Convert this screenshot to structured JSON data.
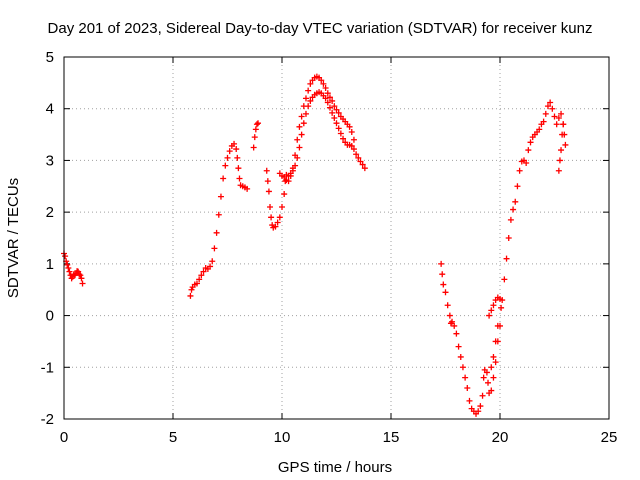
{
  "chart_data": {
    "type": "scatter",
    "title": "Day 201 of 2023, Sidereal Day-to-day VTEC variation (SDTVAR) for receiver kunz",
    "xlabel": "GPS time / hours",
    "ylabel": "SDTVAR / TECUs",
    "xlim": [
      0,
      25
    ],
    "ylim": [
      -2,
      5
    ],
    "xticks": [
      0,
      5,
      10,
      15,
      20,
      25
    ],
    "yticks": [
      -2,
      -1,
      0,
      1,
      2,
      3,
      4,
      5
    ],
    "grid": true,
    "legend": "none",
    "marker": "+",
    "color": "#ff0000",
    "series": [
      {
        "points": [
          [
            0.0,
            1.2
          ],
          [
            0.05,
            1.15
          ],
          [
            0.1,
            1.05
          ],
          [
            0.15,
            0.98
          ],
          [
            0.2,
            0.92
          ],
          [
            0.25,
            0.85
          ],
          [
            0.3,
            0.78
          ],
          [
            0.35,
            0.72
          ],
          [
            0.4,
            0.75
          ],
          [
            0.45,
            0.8
          ],
          [
            0.5,
            0.78
          ],
          [
            0.55,
            0.82
          ],
          [
            0.6,
            0.86
          ],
          [
            0.65,
            0.85
          ],
          [
            0.7,
            0.8
          ],
          [
            0.75,
            0.78
          ],
          [
            0.8,
            0.72
          ],
          [
            0.85,
            0.62
          ]
        ]
      },
      {
        "points": [
          [
            5.8,
            0.38
          ],
          [
            5.85,
            0.5
          ],
          [
            5.9,
            0.55
          ],
          [
            6.0,
            0.6
          ],
          [
            6.1,
            0.62
          ],
          [
            6.2,
            0.7
          ],
          [
            6.3,
            0.78
          ],
          [
            6.4,
            0.85
          ],
          [
            6.5,
            0.92
          ],
          [
            6.6,
            0.9
          ],
          [
            6.7,
            0.95
          ],
          [
            6.8,
            1.05
          ],
          [
            6.9,
            1.3
          ],
          [
            7.0,
            1.6
          ],
          [
            7.1,
            1.95
          ],
          [
            7.2,
            2.3
          ],
          [
            7.3,
            2.65
          ],
          [
            7.4,
            2.9
          ],
          [
            7.5,
            3.05
          ],
          [
            7.6,
            3.18
          ],
          [
            7.7,
            3.28
          ],
          [
            7.8,
            3.32
          ],
          [
            7.9,
            3.22
          ],
          [
            7.95,
            3.05
          ],
          [
            8.0,
            2.85
          ],
          [
            8.05,
            2.65
          ],
          [
            8.1,
            2.52
          ],
          [
            8.2,
            2.5
          ],
          [
            8.3,
            2.48
          ],
          [
            8.4,
            2.45
          ]
        ]
      },
      {
        "points": [
          [
            8.7,
            3.25
          ],
          [
            8.75,
            3.45
          ],
          [
            8.8,
            3.6
          ],
          [
            8.85,
            3.7
          ],
          [
            8.9,
            3.72
          ]
        ]
      },
      {
        "points": [
          [
            9.3,
            2.8
          ],
          [
            9.35,
            2.6
          ],
          [
            9.4,
            2.4
          ],
          [
            9.45,
            2.1
          ],
          [
            9.5,
            1.9
          ],
          [
            9.55,
            1.75
          ],
          [
            9.6,
            1.7
          ],
          [
            9.7,
            1.72
          ],
          [
            9.8,
            1.8
          ],
          [
            9.9,
            1.9
          ],
          [
            10.0,
            2.1
          ],
          [
            10.1,
            2.35
          ],
          [
            10.15,
            2.6
          ],
          [
            10.2,
            2.72
          ],
          [
            10.3,
            2.7
          ],
          [
            10.4,
            2.75
          ],
          [
            10.5,
            2.8
          ],
          [
            10.6,
            2.9
          ],
          [
            10.7,
            3.05
          ],
          [
            10.8,
            3.25
          ],
          [
            10.9,
            3.5
          ],
          [
            11.0,
            3.72
          ],
          [
            11.1,
            3.9
          ],
          [
            11.2,
            4.05
          ],
          [
            11.3,
            4.15
          ],
          [
            11.4,
            4.22
          ],
          [
            11.5,
            4.27
          ],
          [
            11.6,
            4.3
          ],
          [
            11.7,
            4.32
          ],
          [
            11.8,
            4.3
          ],
          [
            11.9,
            4.25
          ],
          [
            12.0,
            4.2
          ],
          [
            12.1,
            4.12
          ],
          [
            12.2,
            4.02
          ],
          [
            12.3,
            3.92
          ],
          [
            12.4,
            3.82
          ],
          [
            12.5,
            3.72
          ],
          [
            12.6,
            3.62
          ],
          [
            12.7,
            3.52
          ],
          [
            12.8,
            3.42
          ],
          [
            12.9,
            3.35
          ],
          [
            13.0,
            3.3
          ],
          [
            13.1,
            3.3
          ],
          [
            13.2,
            3.28
          ],
          [
            13.3,
            3.22
          ],
          [
            13.4,
            3.12
          ],
          [
            13.5,
            3.05
          ],
          [
            13.6,
            2.98
          ],
          [
            13.7,
            2.92
          ],
          [
            13.8,
            2.85
          ]
        ]
      },
      {
        "points": [
          [
            9.9,
            2.75
          ],
          [
            10.0,
            2.7
          ],
          [
            10.1,
            2.68
          ],
          [
            10.2,
            2.62
          ],
          [
            10.3,
            2.6
          ],
          [
            10.4,
            2.7
          ],
          [
            10.5,
            2.85
          ],
          [
            10.6,
            3.1
          ],
          [
            10.7,
            3.4
          ],
          [
            10.8,
            3.65
          ],
          [
            10.9,
            3.85
          ],
          [
            11.0,
            4.05
          ],
          [
            11.1,
            4.2
          ],
          [
            11.2,
            4.35
          ],
          [
            11.3,
            4.48
          ],
          [
            11.4,
            4.55
          ],
          [
            11.5,
            4.6
          ],
          [
            11.6,
            4.62
          ],
          [
            11.7,
            4.6
          ],
          [
            11.8,
            4.55
          ],
          [
            11.9,
            4.48
          ],
          [
            12.0,
            4.4
          ],
          [
            12.1,
            4.3
          ],
          [
            12.2,
            4.22
          ],
          [
            12.3,
            4.15
          ],
          [
            12.4,
            4.05
          ],
          [
            12.5,
            3.98
          ],
          [
            12.6,
            3.92
          ],
          [
            12.7,
            3.85
          ],
          [
            12.8,
            3.8
          ],
          [
            12.9,
            3.75
          ],
          [
            13.0,
            3.7
          ],
          [
            13.1,
            3.65
          ],
          [
            13.2,
            3.55
          ],
          [
            13.3,
            3.4
          ]
        ]
      },
      {
        "points": [
          [
            17.3,
            1.0
          ],
          [
            17.35,
            0.8
          ],
          [
            17.4,
            0.6
          ],
          [
            17.5,
            0.45
          ],
          [
            17.6,
            0.2
          ],
          [
            17.7,
            0.0
          ],
          [
            17.75,
            -0.15
          ],
          [
            17.8,
            -0.12
          ],
          [
            17.9,
            -0.2
          ],
          [
            18.0,
            -0.35
          ],
          [
            18.1,
            -0.6
          ],
          [
            18.2,
            -0.8
          ],
          [
            18.3,
            -1.0
          ],
          [
            18.4,
            -1.2
          ],
          [
            18.5,
            -1.4
          ],
          [
            18.6,
            -1.65
          ],
          [
            18.7,
            -1.8
          ],
          [
            18.8,
            -1.85
          ],
          [
            18.9,
            -1.9
          ],
          [
            19.0,
            -1.85
          ],
          [
            19.1,
            -1.75
          ],
          [
            19.2,
            -1.55
          ],
          [
            19.25,
            -1.2
          ],
          [
            19.3,
            -1.05
          ],
          [
            19.4,
            -1.1
          ],
          [
            19.45,
            -1.3
          ],
          [
            19.5,
            -1.5
          ],
          [
            19.6,
            -1.45
          ],
          [
            19.7,
            -1.2
          ],
          [
            19.8,
            -0.9
          ],
          [
            19.9,
            -0.5
          ],
          [
            20.0,
            -0.2
          ],
          [
            20.1,
            0.3
          ],
          [
            20.2,
            0.7
          ],
          [
            20.3,
            1.1
          ],
          [
            20.4,
            1.5
          ],
          [
            20.5,
            1.85
          ],
          [
            20.6,
            2.05
          ],
          [
            20.7,
            2.2
          ],
          [
            20.8,
            2.5
          ],
          [
            20.9,
            2.8
          ],
          [
            21.0,
            2.98
          ],
          [
            21.1,
            3.0
          ],
          [
            21.2,
            2.95
          ],
          [
            21.3,
            3.2
          ],
          [
            21.4,
            3.35
          ],
          [
            21.5,
            3.45
          ],
          [
            21.6,
            3.5
          ],
          [
            21.7,
            3.55
          ],
          [
            21.8,
            3.6
          ],
          [
            21.9,
            3.7
          ],
          [
            22.0,
            3.75
          ],
          [
            22.1,
            3.9
          ],
          [
            22.2,
            4.05
          ],
          [
            22.3,
            4.12
          ],
          [
            22.4,
            4.0
          ],
          [
            22.5,
            3.85
          ],
          [
            22.6,
            3.7
          ],
          [
            22.7,
            3.82
          ],
          [
            22.8,
            3.9
          ],
          [
            22.9,
            3.7
          ],
          [
            22.95,
            3.5
          ],
          [
            23.0,
            3.3
          ]
        ]
      },
      {
        "points": [
          [
            19.5,
            0.0
          ],
          [
            19.6,
            0.1
          ],
          [
            19.7,
            0.2
          ],
          [
            19.8,
            0.3
          ],
          [
            19.9,
            0.35
          ],
          [
            20.0,
            0.32
          ],
          [
            20.05,
            0.15
          ],
          [
            19.9,
            -0.2
          ],
          [
            19.8,
            -0.5
          ],
          [
            19.7,
            -0.8
          ],
          [
            19.6,
            -1.0
          ],
          [
            22.7,
            2.8
          ],
          [
            22.75,
            3.0
          ],
          [
            22.8,
            3.2
          ],
          [
            22.85,
            3.5
          ],
          [
            22.9,
            3.7
          ]
        ]
      }
    ]
  }
}
